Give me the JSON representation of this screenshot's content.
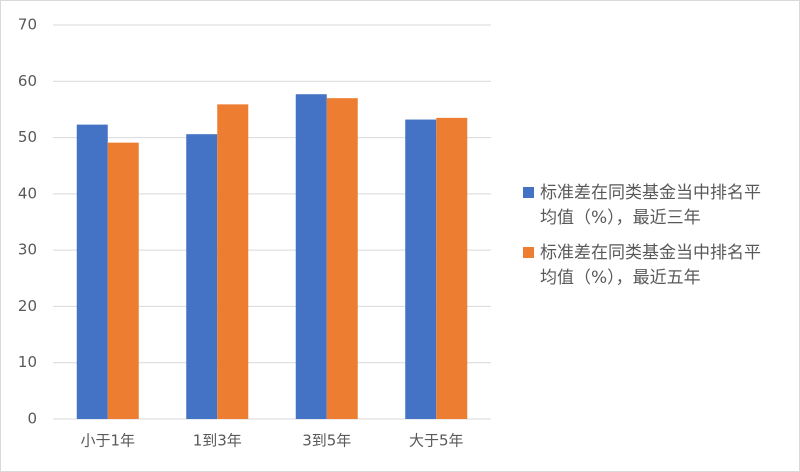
{
  "chart_data": {
    "type": "bar",
    "categories": [
      "小于1年",
      "1到3年",
      "3到5年",
      "大于5年"
    ],
    "series": [
      {
        "name": "标准差在同类基金当中排名平均值（%），最近三年",
        "color": "#4472c4",
        "values": [
          52.3,
          50.6,
          57.7,
          53.2
        ]
      },
      {
        "name": "标准差在同类基金当中排名平均值（%），最近五年",
        "color": "#ed7d31",
        "values": [
          49.1,
          55.9,
          57.0,
          53.5
        ]
      }
    ],
    "ylim": [
      0,
      70
    ],
    "yticks": [
      0,
      10,
      20,
      30,
      40,
      50,
      60,
      70
    ],
    "grid": true,
    "legend": "right"
  }
}
